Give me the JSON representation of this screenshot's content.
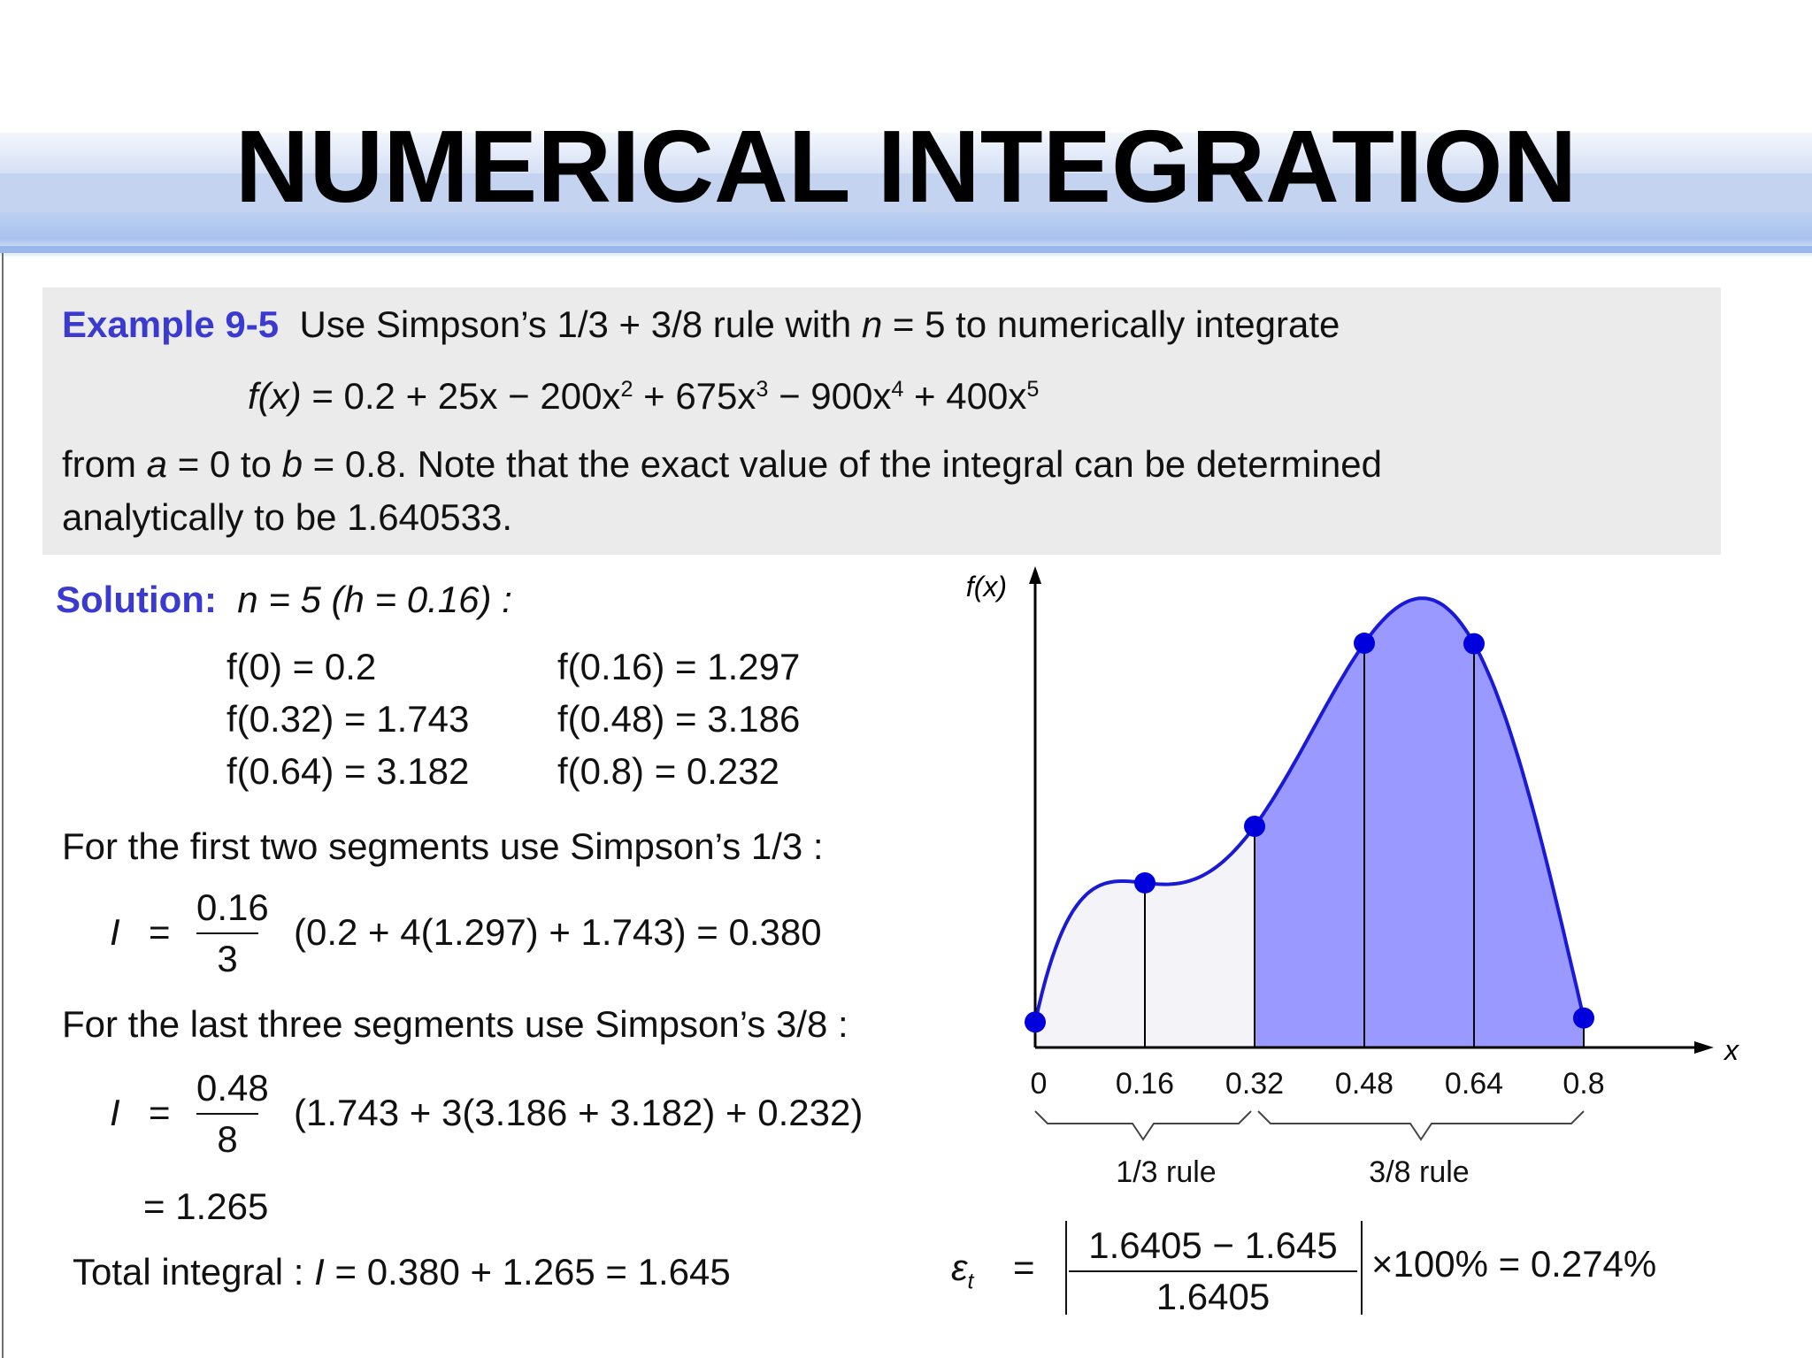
{
  "slide": {
    "title": "NUMERICAL INTEGRATION"
  },
  "problem": {
    "label": "Example 9-5",
    "line1": "Use Simpson’s 1/3 + 3/8 rule with",
    "n_var": "n",
    "line1_end": "= 5 to numerically integrate",
    "function_lhs": "f(x)",
    "function_rhs_parts": [
      "= 0.2 + 25x − 200x",
      "2",
      " + 675x",
      "3",
      " − 900x",
      "4",
      " + 400x",
      "5"
    ],
    "line3_from": "from",
    "a_var": "a",
    "line3_mid": "= 0 to",
    "b_var": "b",
    "line3_end": "= 0.8. Note that the exact value of the integral can be determined",
    "line4": "analytically to be 1.640533."
  },
  "solution": {
    "label": "Solution:",
    "step": "n = 5 (h = 0.16) :",
    "values": [
      {
        "lhs": "f(0) = 0.2",
        "rhs": "f(0.16) = 1.297"
      },
      {
        "lhs": "f(0.32) = 1.743",
        "rhs": "f(0.48) = 3.186"
      },
      {
        "lhs": "f(0.64) = 3.182",
        "rhs": "f(0.8) = 0.232"
      }
    ],
    "first_text": "For the first two segments use Simpson’s 1/3 :",
    "first_I": "I",
    "first_eq": "=",
    "first_num": "0.16",
    "first_den": "3",
    "first_expr": "(0.2 + 4(1.297) + 1.743) = 0.380",
    "last_text": "For the last three segments use Simpson’s 3/8 :",
    "last_I": "I",
    "last_eq": "=",
    "last_num": "0.48",
    "last_den": "8",
    "last_expr": "(1.743 + 3(3.186 + 3.182) + 0.232)",
    "last_result": "= 1.265",
    "total_label": "Total integral : ",
    "total_I": "I",
    "total_expr": " =  0.380 + 1.265  = 1.645",
    "error_symbol": "ε",
    "error_sub": "t",
    "error_eq": "=",
    "error_num": "1.6405 − 1.645",
    "error_den": "1.6405",
    "error_tail": "×100%  =  0.274%"
  },
  "chart_data": {
    "type": "area",
    "title": "",
    "ylabel": "f(x)",
    "xlabel": "x",
    "x": [
      0,
      0.16,
      0.32,
      0.48,
      0.64,
      0.8
    ],
    "y": [
      0.2,
      1.297,
      1.743,
      3.186,
      3.182,
      0.232
    ],
    "tick_labels": [
      "0",
      "0.16",
      "0.32",
      "0.48",
      "0.64",
      "0.8"
    ],
    "xlim": [
      0,
      0.8
    ],
    "ylim": [
      0,
      3.5
    ],
    "regions": [
      {
        "name": "1/3 rule",
        "x_from": 0,
        "x_to": 0.32,
        "color": "#f4f4f8"
      },
      {
        "name": "3/8 rule",
        "x_from": 0.32,
        "x_to": 0.8,
        "color": "#9999ff"
      }
    ],
    "curve_color": "#1a1ad6",
    "point_color": "#0000dd"
  }
}
